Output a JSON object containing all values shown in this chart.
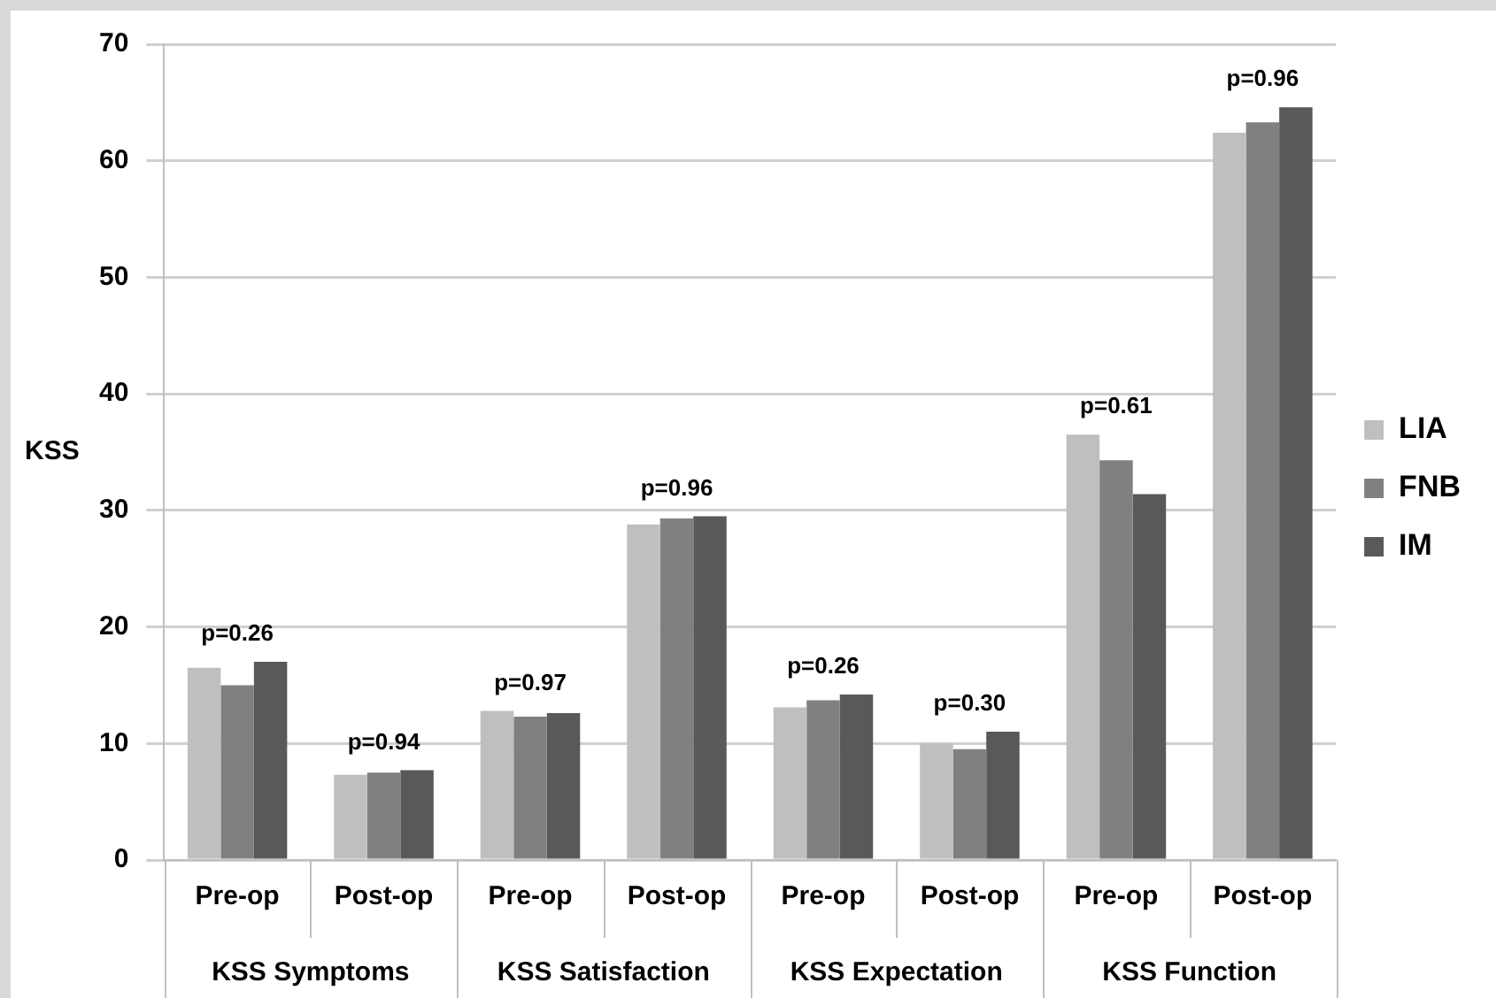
{
  "chart_data": {
    "type": "bar",
    "ylabel": "KSS",
    "categories": [
      "Pre-op",
      "Post-op",
      "Pre-op",
      "Post-op",
      "Pre-op",
      "Post-op",
      "Pre-op",
      "Post-op"
    ],
    "series": [
      {
        "name": "LIA",
        "color": "#bfbfbf",
        "values": [
          16.5,
          7.3,
          12.8,
          28.8,
          13.1,
          10.0,
          36.5,
          62.4
        ]
      },
      {
        "name": "FNB",
        "color": "#808080",
        "values": [
          15.0,
          7.5,
          12.3,
          29.3,
          13.7,
          9.5,
          34.3,
          63.3
        ]
      },
      {
        "name": "IM",
        "color": "#595959",
        "values": [
          17.0,
          7.7,
          12.6,
          29.5,
          14.2,
          11.0,
          31.4,
          64.6
        ]
      }
    ],
    "annotations": [
      "p=0.26",
      "p=0.94",
      "p=0.97",
      "p=0.96",
      "p=0.26",
      "p=0.30",
      "p=0.61",
      "p=0.96",
      "KSS Symptoms",
      "KSS Satisfaction",
      "KSS Expectation",
      "KSS Function"
    ],
    "ylim": [
      0,
      70
    ],
    "yticks": [
      0,
      10,
      20,
      30,
      40,
      50,
      60,
      70
    ],
    "grid": "y",
    "legend": "right"
  }
}
